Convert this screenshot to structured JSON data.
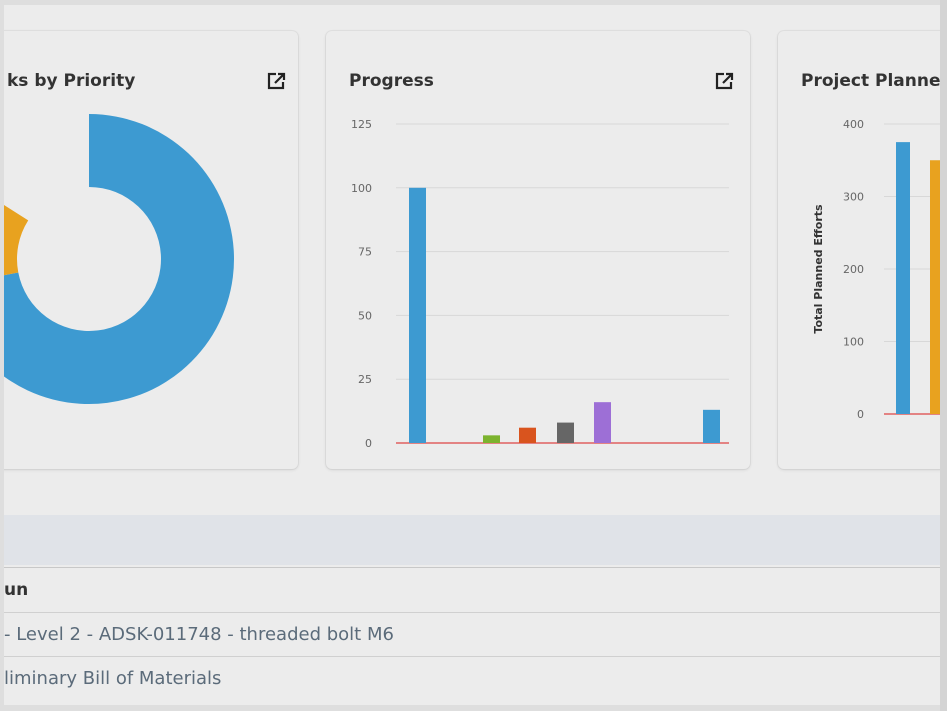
{
  "cards": {
    "priority": {
      "title": "ks by Priority"
    },
    "progress": {
      "title": "Progress"
    },
    "planned": {
      "title": "Project Planne"
    }
  },
  "icons": {
    "external_link": "external-link-icon"
  },
  "colors": {
    "blue": "#3d9ad1",
    "orange": "#e8a21f",
    "green": "#7cb32e",
    "red_orange": "#d9541e",
    "gray": "#666666",
    "purple": "#9d6fd6",
    "baseline": "#e06060"
  },
  "table": {
    "column_header": "un",
    "rows": [
      "- Level 2 - ADSK-011748 - threaded bolt M6",
      "liminary Bill of Materials"
    ]
  },
  "chart_data": [
    {
      "type": "pie",
      "title": "ks by Priority",
      "slices": [
        {
          "value": 0.72,
          "color": "#3d9ad1"
        },
        {
          "value": 0.12,
          "color": "#e8a21f"
        }
      ]
    },
    {
      "type": "bar",
      "title": "Progress",
      "ylim": [
        0,
        125
      ],
      "yticks": [
        "0",
        "25",
        "50",
        "75",
        "100",
        "125"
      ],
      "series": [
        {
          "values": [
            100,
            3,
            6,
            8,
            16,
            13
          ],
          "colors": [
            "#3d9ad1",
            "#7cb32e",
            "#d9541e",
            "#666666",
            "#9d6fd6",
            "#3d9ad1"
          ]
        }
      ]
    },
    {
      "type": "bar",
      "title": "Project Planne",
      "ylabel": "Total Planned Efforts",
      "ylim": [
        0,
        400
      ],
      "yticks": [
        "0",
        "100",
        "200",
        "300",
        "400"
      ],
      "series": [
        {
          "values": [
            375,
            350
          ],
          "colors": [
            "#3d9ad1",
            "#e8a21f"
          ]
        }
      ]
    }
  ]
}
